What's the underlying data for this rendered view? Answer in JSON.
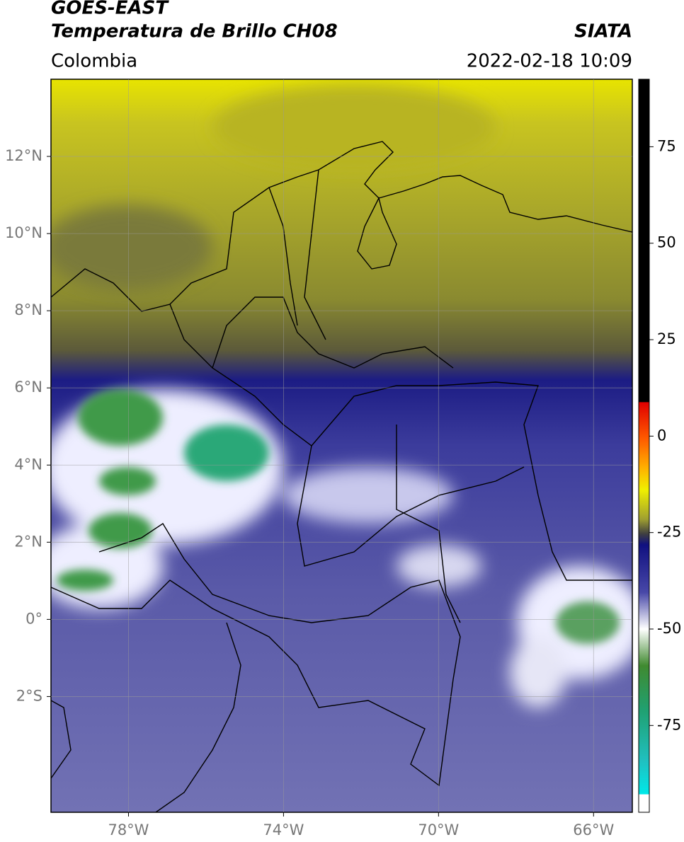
{
  "header": {
    "source": "GOES-EAST",
    "product": "Temperatura de Brillo CH08",
    "agency": "SIATA",
    "region": "Colombia",
    "datetime": "2022-02-18 10:09"
  },
  "map": {
    "xlim": [
      -80,
      -65
    ],
    "ylim": [
      -5,
      14
    ],
    "grid": true,
    "xticks": [
      {
        "value": -78,
        "label": "78°W"
      },
      {
        "value": -74,
        "label": "74°W"
      },
      {
        "value": -70,
        "label": "70°W"
      },
      {
        "value": -66,
        "label": "66°W"
      }
    ],
    "yticks": [
      {
        "value": 12,
        "label": "12°N"
      },
      {
        "value": 10,
        "label": "10°N"
      },
      {
        "value": 8,
        "label": "8°N"
      },
      {
        "value": 6,
        "label": "6°N"
      },
      {
        "value": 4,
        "label": "4°N"
      },
      {
        "value": 2,
        "label": "2°N"
      },
      {
        "value": 0,
        "label": "0°"
      },
      {
        "value": -2,
        "label": "2°S"
      }
    ]
  },
  "colorbar": {
    "lim": [
      -97.5,
      92.5
    ],
    "ticks": [
      75,
      50,
      25,
      0,
      -25,
      -50,
      -75
    ]
  }
}
